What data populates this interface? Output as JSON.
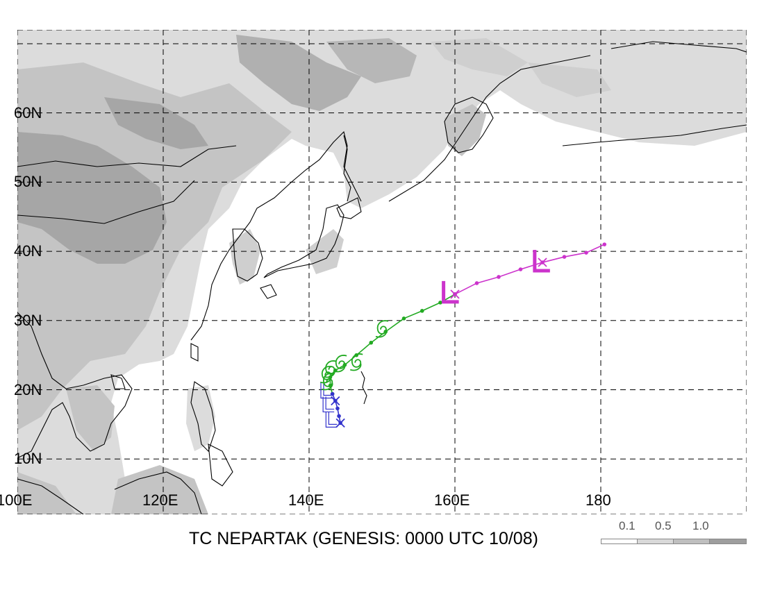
{
  "title": "TC NEPARTAK (GENESIS: 0000 UTC 10/08)",
  "map": {
    "lon_range": [
      100,
      200
    ],
    "lat_range": [
      2,
      72
    ],
    "lat_labels": [
      "10N",
      "20N",
      "30N",
      "40N",
      "50N",
      "60N"
    ],
    "lon_labels": [
      "100E",
      "120E",
      "140E",
      "160E",
      "180"
    ],
    "grid": "dashed"
  },
  "legend": {
    "ticks": [
      "0.1",
      "0.5",
      "1.0"
    ],
    "colors": [
      "#ffffff",
      "#d9d9d9",
      "#bfbfbf",
      "#9e9e9e"
    ]
  },
  "colors": {
    "stage_depression": "#3333cc",
    "stage_tropical": "#22aa22",
    "stage_extratropical": "#cc33cc",
    "land_shade_light": "#dcdcdc",
    "land_shade_mid": "#c4c4c4",
    "land_shade_dark": "#a6a6a6"
  },
  "track": {
    "depression": [
      [
        144.3,
        15.2
      ],
      [
        144.1,
        16.2
      ],
      [
        143.9,
        17.3
      ],
      [
        143.6,
        18.4
      ],
      [
        143.2,
        19.4
      ]
    ],
    "tropical": [
      [
        143.2,
        19.4
      ],
      [
        142.9,
        20.6
      ],
      [
        142.9,
        21.8
      ],
      [
        143.6,
        22.8
      ],
      [
        144.9,
        23.6
      ],
      [
        146.5,
        25.0
      ],
      [
        148.5,
        26.8
      ],
      [
        150.5,
        28.4
      ],
      [
        153.0,
        30.3
      ],
      [
        155.5,
        31.4
      ],
      [
        158.0,
        32.6
      ],
      [
        160.0,
        33.8
      ]
    ],
    "extratropical": [
      [
        160.0,
        33.8
      ],
      [
        163.0,
        35.4
      ],
      [
        166.0,
        36.3
      ],
      [
        169.0,
        37.4
      ],
      [
        172.0,
        38.4
      ],
      [
        175.0,
        39.2
      ],
      [
        178.0,
        39.8
      ],
      [
        180.5,
        41.0
      ]
    ],
    "x_marks": [
      [
        144.3,
        15.2
      ],
      [
        143.6,
        18.4
      ],
      [
        160.0,
        33.8
      ],
      [
        172.0,
        38.4
      ]
    ],
    "depression_symbols": [
      [
        142.7,
        15.4
      ],
      [
        142.3,
        17.6
      ],
      [
        142.0,
        19.6
      ]
    ],
    "storm_symbols": [
      [
        142.4,
        22.2
      ],
      [
        142.6,
        21.2
      ],
      [
        142.9,
        23.0
      ],
      [
        144.3,
        23.8
      ],
      [
        146.5,
        24.0
      ],
      [
        150.0,
        28.8
      ]
    ],
    "extratropical_symbols": [
      [
        159.2,
        33.9
      ],
      [
        171.7,
        38.4
      ]
    ]
  }
}
